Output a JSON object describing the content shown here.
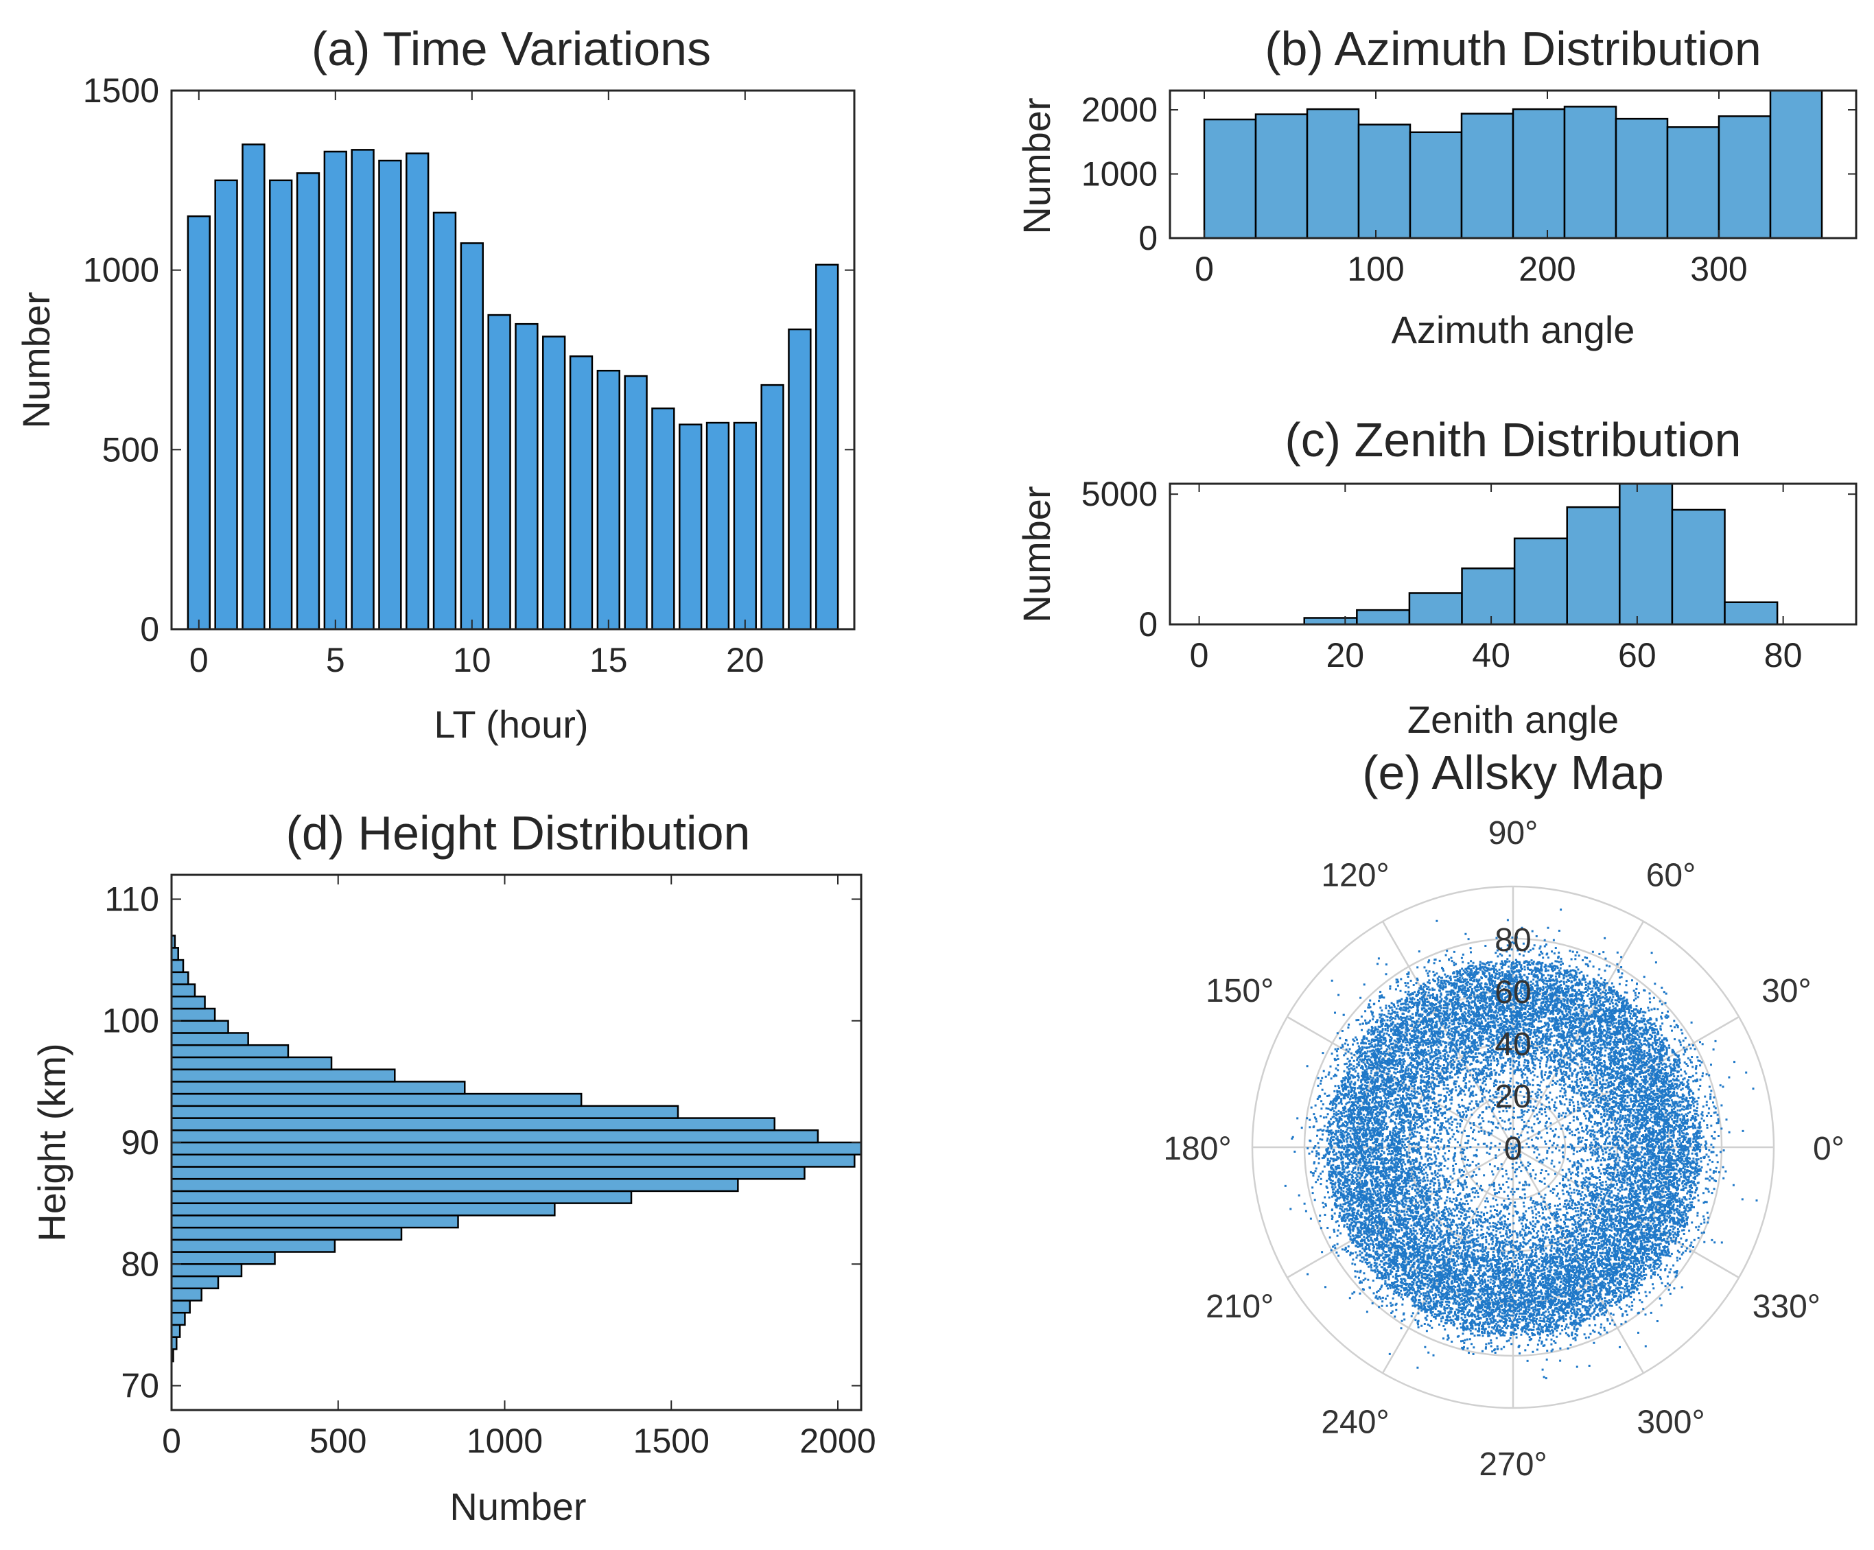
{
  "colors": {
    "bar_a": "#4a9fdf",
    "bar_hist": "#5fa8d8",
    "edge": "#000000",
    "dots": "#1f78c8",
    "polar_grid": "#d0d0d0",
    "text": "#262626"
  },
  "chart_data": [
    {
      "id": "a",
      "type": "bar",
      "title": "(a) Time Variations",
      "xlabel": "LT (hour)",
      "ylabel": "Number",
      "xlim": [
        -1,
        24
      ],
      "ylim": [
        0,
        1500
      ],
      "xticks": [
        0,
        5,
        10,
        15,
        20
      ],
      "yticks": [
        0,
        500,
        1000,
        1500
      ],
      "x": [
        0,
        1,
        2,
        3,
        4,
        5,
        6,
        7,
        8,
        9,
        10,
        11,
        12,
        13,
        14,
        15,
        16,
        17,
        18,
        19,
        20,
        21,
        22,
        23
      ],
      "values": [
        1150,
        1250,
        1350,
        1250,
        1270,
        1330,
        1335,
        1305,
        1325,
        1160,
        1075,
        875,
        850,
        815,
        760,
        720,
        705,
        615,
        570,
        575,
        575,
        680,
        835,
        1015
      ]
    },
    {
      "id": "b",
      "type": "histogram",
      "title": "(b) Azimuth Distribution",
      "xlabel": "Azimuth angle",
      "ylabel": "Number",
      "xlim": [
        -20,
        380
      ],
      "ylim": [
        0,
        2300
      ],
      "xticks": [
        0,
        100,
        200,
        300
      ],
      "yticks": [
        0,
        1000,
        2000
      ],
      "bin_edges": [
        0,
        30,
        60,
        90,
        120,
        150,
        180,
        210,
        240,
        270,
        300,
        330,
        360
      ],
      "values": [
        1850,
        1930,
        2010,
        1770,
        1650,
        1940,
        2010,
        2050,
        1860,
        1730,
        1900,
        2300
      ]
    },
    {
      "id": "c",
      "type": "histogram",
      "title": "(c) Zenith Distribution",
      "xlabel": "Zenith angle",
      "ylabel": "Number",
      "xlim": [
        -4,
        90
      ],
      "ylim": [
        0,
        5400
      ],
      "xticks": [
        0,
        20,
        40,
        60,
        80
      ],
      "yticks": [
        0,
        5000
      ],
      "bin_edges": [
        0,
        7.2,
        14.4,
        21.6,
        28.8,
        36,
        43.2,
        50.4,
        57.6,
        64.8,
        72,
        79.2
      ],
      "values": [
        0,
        0,
        250,
        550,
        1200,
        2150,
        3300,
        4500,
        5400,
        4400,
        850
      ]
    },
    {
      "id": "d",
      "type": "histogram-horizontal",
      "title": "(d) Height Distribution",
      "xlabel": "Number",
      "ylabel": "Height (km)",
      "xlim": [
        0,
        2070
      ],
      "ylim": [
        68,
        112
      ],
      "xticks": [
        0,
        500,
        1000,
        1500,
        2000
      ],
      "yticks": [
        70,
        80,
        90,
        100,
        110
      ],
      "bin_width": 1,
      "bin_start": 72,
      "values": [
        5,
        15,
        25,
        40,
        55,
        90,
        140,
        210,
        310,
        490,
        690,
        860,
        1150,
        1380,
        1700,
        1900,
        2050,
        2070,
        1940,
        1810,
        1520,
        1230,
        880,
        670,
        480,
        350,
        230,
        170,
        130,
        100,
        70,
        50,
        35,
        20,
        10
      ]
    },
    {
      "id": "e",
      "type": "polar-scatter",
      "title": "(e) Allsky Map",
      "theta_ticks": [
        "0°",
        "30°",
        "60°",
        "90°",
        "120°",
        "150°",
        "180°",
        "210°",
        "240°",
        "270°",
        "300°",
        "330°"
      ],
      "r_ticks": [
        "0",
        "20",
        "40",
        "60",
        "80"
      ],
      "rlim": [
        0,
        100
      ],
      "approx_point_count": 23000
    }
  ]
}
